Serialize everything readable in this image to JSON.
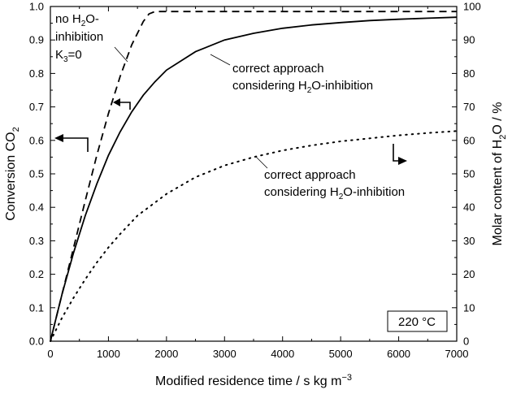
{
  "chart_data": {
    "type": "line",
    "xlabel_main": "Modified residence time / s kg m",
    "xlabel_sup": "−3",
    "ylabel_left_main": "Conversion CO",
    "ylabel_left_sub": "2",
    "ylabel_right_a": "Molar content of H",
    "ylabel_right_sub": "2",
    "ylabel_right_b": "O / %",
    "xlim": [
      0,
      7000
    ],
    "ylim_left": [
      0.0,
      1.0
    ],
    "ylim_right": [
      0,
      100
    ],
    "x_ticks": [
      "0",
      "1000",
      "2000",
      "3000",
      "4000",
      "5000",
      "6000",
      "7000"
    ],
    "y_left_ticks": [
      "0.0",
      "0.1",
      "0.2",
      "0.3",
      "0.4",
      "0.5",
      "0.6",
      "0.7",
      "0.8",
      "0.9",
      "1.0"
    ],
    "y_right_ticks": [
      "0",
      "10",
      "20",
      "30",
      "40",
      "50",
      "60",
      "70",
      "80",
      "90",
      "100"
    ],
    "series": [
      {
        "style": "dashed",
        "axis": "left",
        "x": [
          0,
          100,
          200,
          400,
          600,
          800,
          1000,
          1200,
          1400,
          1600,
          1700,
          1800,
          2000,
          3000,
          4000,
          5000,
          6000,
          7000
        ],
        "y": [
          0.0,
          0.07,
          0.14,
          0.28,
          0.42,
          0.555,
          0.68,
          0.79,
          0.885,
          0.955,
          0.978,
          0.985,
          0.985,
          0.985,
          0.985,
          0.985,
          0.985,
          0.985
        ]
      },
      {
        "style": "solid",
        "axis": "left",
        "x": [
          0,
          100,
          200,
          400,
          600,
          800,
          1000,
          1200,
          1400,
          1600,
          1800,
          2000,
          2500,
          3000,
          3500,
          4000,
          4500,
          5000,
          5500,
          6000,
          6500,
          7000
        ],
        "y": [
          0.0,
          0.07,
          0.14,
          0.265,
          0.375,
          0.47,
          0.555,
          0.625,
          0.685,
          0.735,
          0.775,
          0.81,
          0.865,
          0.9,
          0.92,
          0.935,
          0.945,
          0.952,
          0.958,
          0.962,
          0.965,
          0.968
        ]
      },
      {
        "style": "dotted",
        "axis": "right",
        "x": [
          0,
          100,
          200,
          400,
          600,
          800,
          1000,
          1200,
          1500,
          2000,
          2500,
          3000,
          3500,
          4000,
          4500,
          5000,
          5500,
          6000,
          6500,
          7000
        ],
        "y": [
          0,
          3.5,
          7,
          13,
          18.5,
          23.5,
          28,
          32,
          37.5,
          44,
          49,
          52.5,
          55,
          57,
          58.5,
          59.7,
          60.6,
          61.5,
          62.2,
          62.8
        ]
      }
    ],
    "annotations": {
      "no_h2o": {
        "line1_a": "no H",
        "line1_sub": "2",
        "line1_b": "O-",
        "line2": "inhibition",
        "line3_a": "K",
        "line3_sub": "3",
        "line3_b": "=0"
      },
      "solid_label": {
        "line1": "correct approach",
        "line2_a": "considering H",
        "line2_sub": "2",
        "line2_b": "O-inhibition"
      },
      "dotted_label": {
        "line1": "correct approach",
        "line2_a": "considering H",
        "line2_sub": "2",
        "line2_b": "O-inhibition"
      },
      "temperature": "220 °C"
    },
    "grid": false,
    "legend": "none"
  }
}
